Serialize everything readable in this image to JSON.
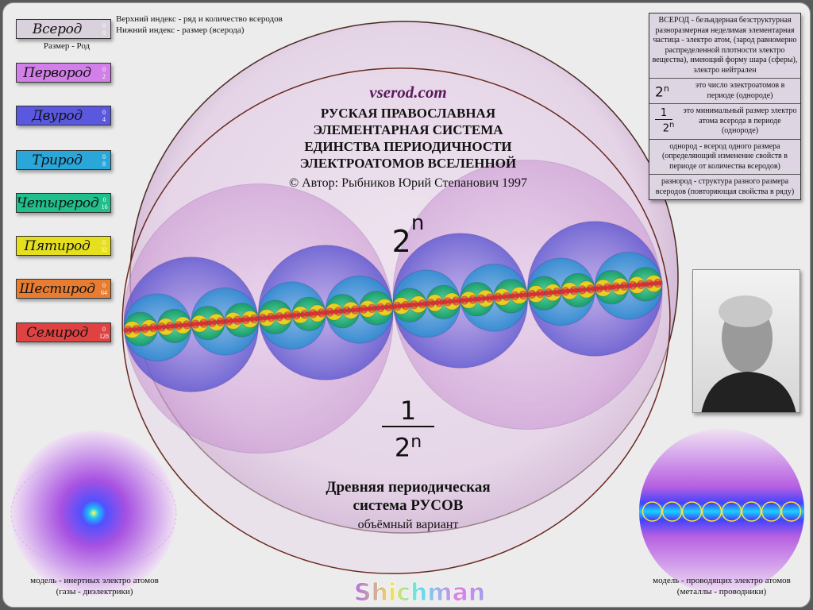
{
  "legend": {
    "upper_index_note": "Верхний индекс - ряд и количество всеродов",
    "lower_index_note": "Нижний индекс - размер (всерода)",
    "size_note": "Размер - Род",
    "items": [
      {
        "name": "Всерод",
        "sup": "0",
        "sub": "0",
        "color": "#d9d1dc"
      },
      {
        "name": "Первород",
        "sup": "0",
        "sub": "2",
        "color": "#d27fe9"
      },
      {
        "name": "Двурод",
        "sup": "0",
        "sub": "4",
        "color": "#5b58e0"
      },
      {
        "name": "Трирод",
        "sup": "0",
        "sub": "8",
        "color": "#2aa6d9"
      },
      {
        "name": "Четырерод",
        "sup": "0",
        "sub": "16",
        "color": "#20c08c"
      },
      {
        "name": "Пятирод",
        "sup": "0",
        "sub": "32",
        "color": "#e5df1e"
      },
      {
        "name": "Шестирод",
        "sup": "0",
        "sub": "64",
        "color": "#e87d31"
      },
      {
        "name": "Семирод",
        "sup": "0",
        "sub": "128",
        "color": "#e04242"
      }
    ]
  },
  "center": {
    "site": "vserod.com",
    "title_lines": [
      "РУСКАЯ ПРАВОСЛАВНАЯ",
      "ЭЛЕМЕНТАРНАЯ СИСТЕМА",
      "ЕДИНСТВА ПЕРИОДИЧНОСТИ",
      "ЭЛЕКТРОАТОМОВ ВСЕЛЕННОЙ"
    ],
    "author": "© Автор: Рыбников Юрий Степанович 1997",
    "power_base": "2",
    "power_exp": "n",
    "frac_num": "1",
    "frac_base": "2",
    "frac_exp": "n",
    "subtitle_lines": [
      "Древняя периодическая",
      "система РУСОВ"
    ],
    "variant": "объёмный вариант"
  },
  "info": {
    "definition": "ВСЕРОД - безъядерная безструктурная  разноразмерная неделимая элементарная частица - электро атом, (зарод  равномерно распределенной плотности электро вещества), имеющий форму шара (сферы), электро нейтрален",
    "power_desc": "это число электроатомов в периоде (однороде)",
    "frac_desc": "это минимальный размер электро атома всерода в периоде (однороде)",
    "odnorod": "однород - всерод одного размера (определяющий изменение свойств в периоде от количества всеродов)",
    "raznorod": "разнород - структура разного размера всеродов (повторяющая свойства в ряду)"
  },
  "models": {
    "inert": [
      "модель - инертных электро атомов",
      "(газы - диэлектрики)"
    ],
    "conductive": [
      "модель - проводящих электро атомов",
      "(металлы - проводники)"
    ]
  },
  "watermark": "Shichman"
}
